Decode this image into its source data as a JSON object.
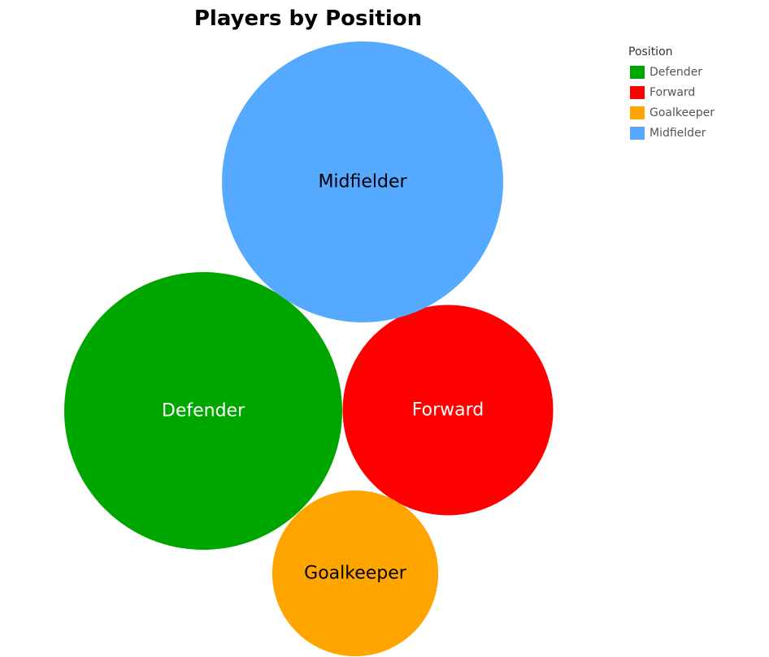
{
  "chart_data": {
    "type": "bubble",
    "title": "Players by Position",
    "legend": {
      "title": "Position",
      "placement": "top-right"
    },
    "categories": [
      "Defender",
      "Forward",
      "Goalkeeper",
      "Midfielder"
    ],
    "series": [
      {
        "name": "Defender",
        "value": 171,
        "color": "#00A600",
        "label_color": "#ffffff"
      },
      {
        "name": "Forward",
        "value": 98,
        "color": "#FF0000",
        "label_color": "#ffffff"
      },
      {
        "name": "Goalkeeper",
        "value": 61,
        "color": "#FFA500",
        "label_color": "#000000"
      },
      {
        "name": "Midfielder",
        "value": 175,
        "color": "#55AAFF",
        "label_color": "#000000"
      }
    ]
  }
}
